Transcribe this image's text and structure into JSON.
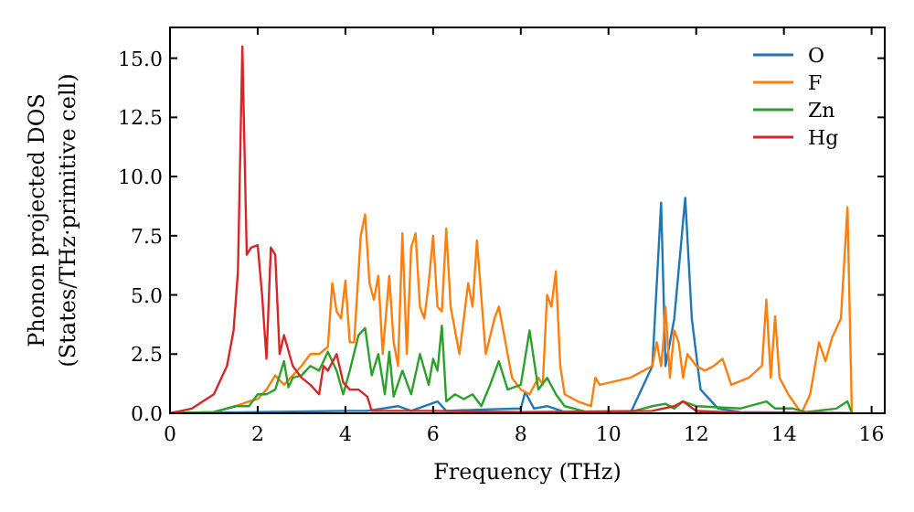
{
  "chart_data": {
    "type": "line",
    "xlabel": "Frequency (THz)",
    "ylabel": "Phonon projected DOS\n(States/THz·primitive cell)",
    "xlim": [
      0,
      16.3
    ],
    "ylim": [
      0,
      16.3
    ],
    "xticks": [
      0,
      2,
      4,
      6,
      8,
      10,
      12,
      14,
      16
    ],
    "yticks": [
      {
        "value": 0,
        "label": "0.0"
      },
      {
        "value": 2.5,
        "label": "2.5"
      },
      {
        "value": 5,
        "label": "5.0"
      },
      {
        "value": 7.5,
        "label": "7.5"
      },
      {
        "value": 10,
        "label": "10.0"
      },
      {
        "value": 12.5,
        "label": "12.5"
      },
      {
        "value": 15,
        "label": "15.0"
      }
    ],
    "grid": false,
    "legend": "top right",
    "marker": "none",
    "line_style": "solid",
    "series": [
      {
        "name": "O",
        "color": "#1f77b4",
        "x": [
          0,
          2,
          4,
          4.5,
          5.2,
          5.5,
          6.1,
          6.3,
          7,
          8,
          8.1,
          8.3,
          8.6,
          9,
          10.5,
          11,
          11.2,
          11.3,
          11.5,
          11.75,
          11.9,
          12.1,
          12.5,
          13,
          15.6
        ],
        "values": [
          0,
          0.05,
          0.1,
          0.1,
          0.3,
          0.1,
          0.5,
          0.1,
          0.15,
          0.2,
          0.9,
          0.2,
          0.3,
          0.05,
          0,
          2,
          8.9,
          2,
          4,
          9.1,
          4,
          1,
          0.2,
          0.05,
          0
        ]
      },
      {
        "name": "F",
        "color": "#ff7f0e",
        "x": [
          0,
          1,
          1.5,
          1.8,
          2,
          2.2,
          2.4,
          2.6,
          2.8,
          3,
          3.2,
          3.4,
          3.6,
          3.7,
          3.8,
          3.9,
          4,
          4.1,
          4.2,
          4.35,
          4.45,
          4.55,
          4.65,
          4.75,
          4.85,
          5,
          5.1,
          5.2,
          5.3,
          5.4,
          5.5,
          5.6,
          5.7,
          5.8,
          5.9,
          6,
          6.1,
          6.2,
          6.3,
          6.4,
          6.6,
          6.8,
          6.9,
          7,
          7.2,
          7.4,
          7.5,
          7.6,
          7.8,
          8,
          8.2,
          8.4,
          8.5,
          8.6,
          8.7,
          8.8,
          8.9,
          9,
          9.3,
          9.6,
          9.7,
          9.8,
          10.5,
          11,
          11.1,
          11.2,
          11.25,
          11.3,
          11.4,
          11.5,
          11.6,
          11.7,
          11.8,
          12,
          12.2,
          12.4,
          12.6,
          12.8,
          13.2,
          13.5,
          13.6,
          13.7,
          13.8,
          13.9,
          14.1,
          14.4,
          14.6,
          14.8,
          14.95,
          15.1,
          15.3,
          15.45,
          15.55
        ],
        "values": [
          0,
          0.05,
          0.3,
          0.5,
          0.6,
          1,
          1.6,
          1.2,
          1.6,
          2,
          2.5,
          2.5,
          2.8,
          5.5,
          4.3,
          4,
          5.6,
          3,
          3,
          7.5,
          8.4,
          5.5,
          4.8,
          5.8,
          2.5,
          5.8,
          3,
          2,
          7.6,
          2.5,
          7,
          7.6,
          4.5,
          4,
          5.5,
          7.5,
          4.5,
          4.3,
          7.8,
          4.5,
          2.5,
          5.5,
          4.5,
          7.3,
          2.5,
          4,
          4.5,
          3.5,
          1.5,
          1,
          0.8,
          1.5,
          1.2,
          5,
          4.5,
          6,
          2,
          0.8,
          0.5,
          0.3,
          1.5,
          1.2,
          1.5,
          2,
          3,
          2,
          3,
          4.5,
          1.5,
          3.5,
          3,
          1.5,
          2.5,
          2,
          1.8,
          2,
          2.3,
          1.2,
          1.5,
          2,
          4.8,
          1.5,
          4.1,
          1.5,
          0.8,
          0,
          0.8,
          3,
          2.2,
          3.2,
          4,
          8.7,
          0
        ]
      },
      {
        "name": "Zn",
        "color": "#2ca02c",
        "x": [
          0,
          1,
          1.5,
          1.8,
          2,
          2.2,
          2.4,
          2.6,
          2.7,
          2.8,
          3,
          3.2,
          3.4,
          3.6,
          3.8,
          3.95,
          4.1,
          4.3,
          4.45,
          4.6,
          4.75,
          4.9,
          5,
          5.1,
          5.3,
          5.5,
          5.7,
          5.9,
          6,
          6.1,
          6.2,
          6.3,
          6.5,
          6.7,
          6.9,
          7.1,
          7.3,
          7.5,
          7.7,
          8,
          8.2,
          8.4,
          8.6,
          8.8,
          9,
          9.5,
          10.5,
          11,
          11.3,
          11.5,
          11.7,
          12,
          13,
          13.6,
          13.8,
          14.2,
          14.5,
          15.2,
          15.45,
          15.55
        ],
        "values": [
          0,
          0.05,
          0.3,
          0.3,
          0.8,
          0.8,
          1,
          2.2,
          1.1,
          1.5,
          1.6,
          2,
          1.8,
          2.6,
          1.8,
          0.8,
          1.8,
          3.3,
          3.6,
          1.6,
          2.5,
          0.8,
          2.6,
          0.7,
          1.8,
          0.8,
          2.5,
          1.2,
          2.3,
          1.8,
          3.7,
          0.5,
          0.8,
          0.6,
          0.8,
          0.3,
          1.2,
          2.2,
          1,
          1.2,
          3.5,
          1,
          1.5,
          0.8,
          0.3,
          0.05,
          0.05,
          0.3,
          0.4,
          0.2,
          0.5,
          0.3,
          0.2,
          0.5,
          0.2,
          0.2,
          0.05,
          0.2,
          0.5,
          0
        ]
      },
      {
        "name": "Hg",
        "color": "#d62728",
        "x": [
          0,
          0.5,
          1,
          1.3,
          1.45,
          1.55,
          1.65,
          1.75,
          1.85,
          2,
          2.1,
          2.2,
          2.3,
          2.4,
          2.5,
          2.6,
          2.8,
          3,
          3.2,
          3.4,
          3.5,
          3.6,
          3.8,
          3.95,
          4.1,
          4.3,
          4.5,
          4.6,
          5,
          6,
          8,
          11,
          11.5,
          11.7,
          12,
          13,
          15.5
        ],
        "values": [
          0,
          0.2,
          0.8,
          2,
          3.5,
          6,
          15.5,
          6.7,
          7,
          7.1,
          5,
          2.3,
          7,
          6.7,
          2.5,
          3.3,
          2,
          1.5,
          1.2,
          0.8,
          2,
          1.8,
          2.5,
          1.3,
          1,
          1,
          0.7,
          0.1,
          0.1,
          0.1,
          0.05,
          0.1,
          0.3,
          0.5,
          0.1,
          0.02,
          0
        ]
      }
    ]
  }
}
